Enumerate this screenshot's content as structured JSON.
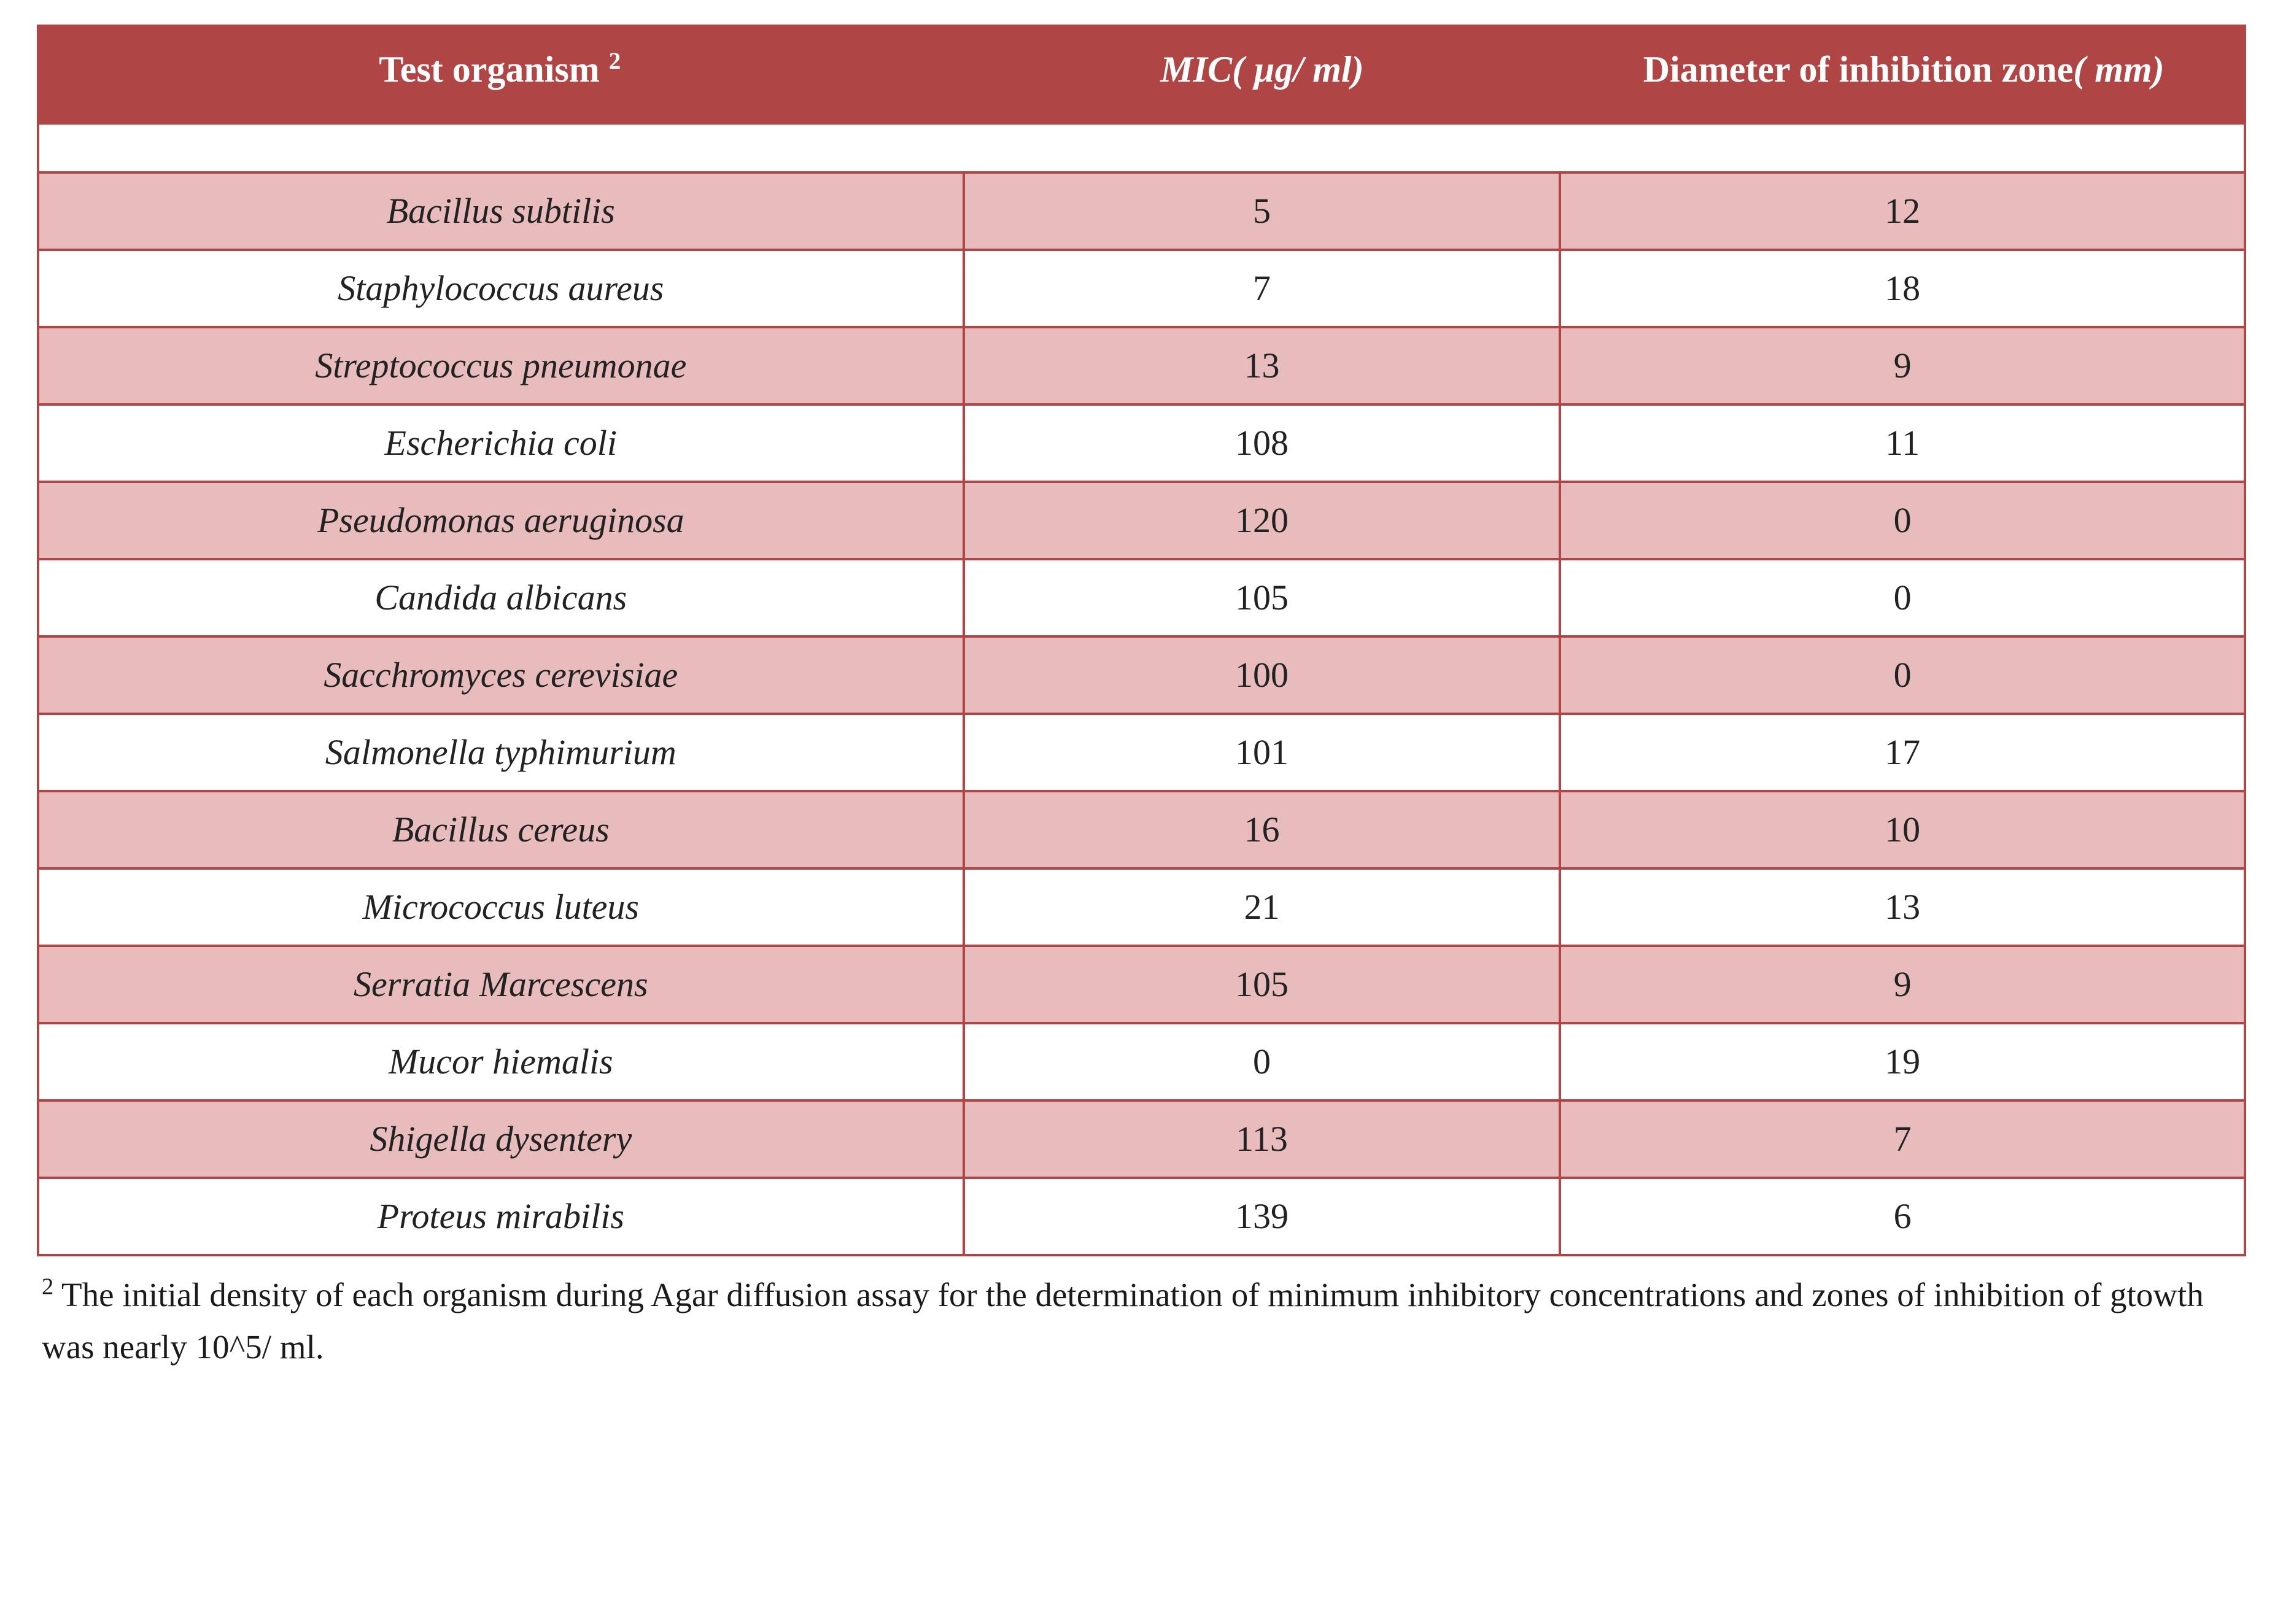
{
  "table": {
    "col_widths_pct": [
      42,
      27,
      31
    ],
    "header_bg": "#b04545",
    "header_fg": "#ffffff",
    "border_color": "#b04545",
    "band_bg": "#e8bcbc",
    "row_bg": "#ffffff",
    "header_font_size_pt": 45,
    "cell_font_size_pt": 44,
    "columns": [
      {
        "label_main": "Test organism ",
        "sup": "2",
        "label_unit": ""
      },
      {
        "label_main": "MIC",
        "label_unit": "( µg/ ml)"
      },
      {
        "label_main": "Diameter of inhibition zone",
        "label_unit": "( mm)"
      }
    ],
    "rows": [
      {
        "organism": "Bacillus subtilis",
        "mic": "5",
        "zone": "12"
      },
      {
        "organism": "Staphylococcus aureus",
        "mic": "7",
        "zone": "18"
      },
      {
        "organism": "Streptococcus pneumonae",
        "mic": "13",
        "zone": "9"
      },
      {
        "organism": "Escherichia coli",
        "mic": "108",
        "zone": "11"
      },
      {
        "organism": "Pseudomonas aeruginosa",
        "mic": "120",
        "zone": "0"
      },
      {
        "organism": "Candida albicans",
        "mic": "105",
        "zone": "0"
      },
      {
        "organism": "Sacchromyces cerevisiae",
        "mic": "100",
        "zone": "0"
      },
      {
        "organism": "Salmonella typhimurium",
        "mic": "101",
        "zone": "17"
      },
      {
        "organism": "Bacillus cereus",
        "mic": "16",
        "zone": "10"
      },
      {
        "organism": "Micrococcus luteus",
        "mic": "21",
        "zone": "13"
      },
      {
        "organism": "Serratia Marcescens",
        "mic": "105",
        "zone": "9"
      },
      {
        "organism": "Mucor hiemalis",
        "mic": "0",
        "zone": "19"
      },
      {
        "organism": "Shigella dysentery",
        "mic": "113",
        "zone": "7"
      },
      {
        "organism": "Proteus mirabilis",
        "mic": "139",
        "zone": "6"
      }
    ]
  },
  "footnote": {
    "sup": "2",
    "text": " The initial density of each organism during Agar diffusion assay for the determination of minimum inhibitory concentrations and zones of inhibition of gtowth was nearly 10^5/ ml."
  }
}
